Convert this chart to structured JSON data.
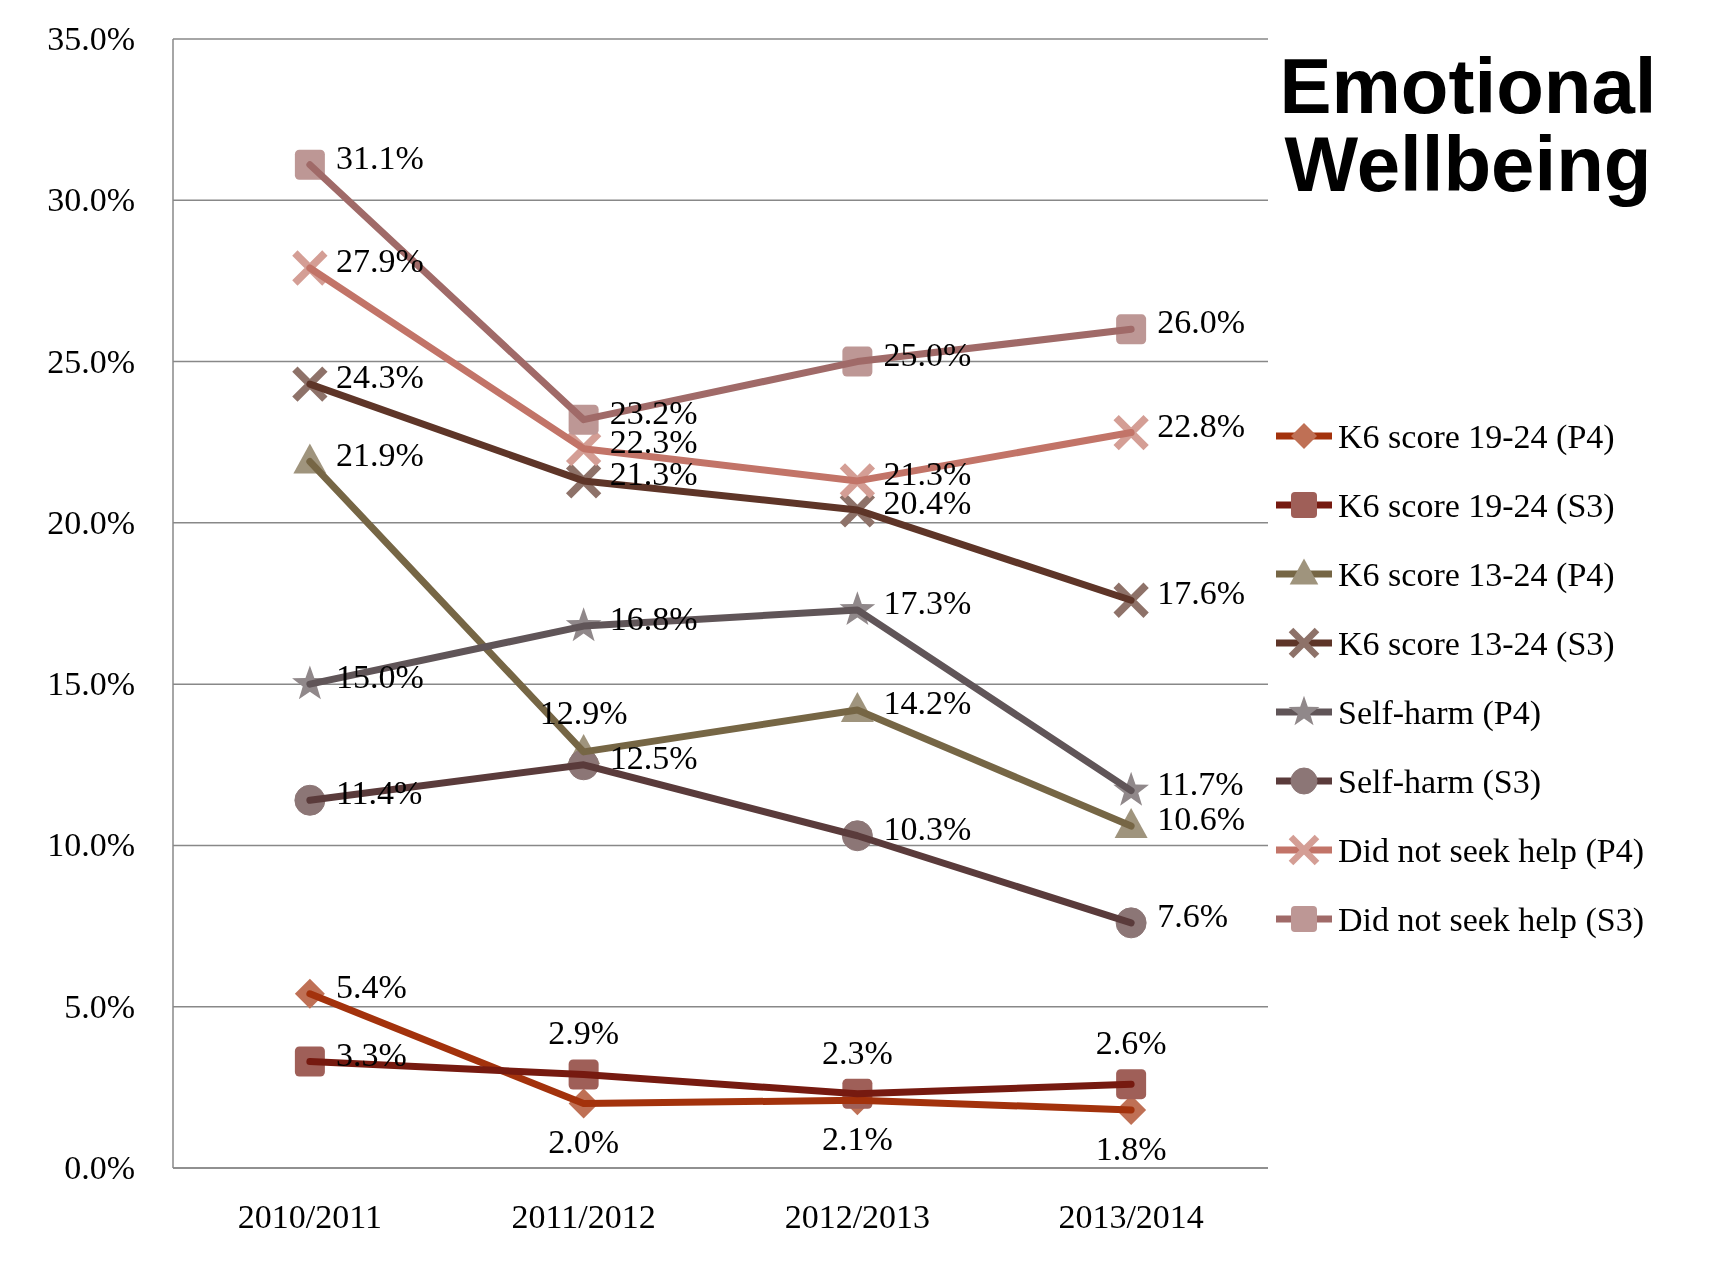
{
  "chart_data": {
    "type": "line",
    "title": "Emotional Wellbeing",
    "categories": [
      "2010/2011",
      "2011/2012",
      "2012/2013",
      "2013/2014"
    ],
    "ylim": [
      0,
      35
    ],
    "yticks": [
      {
        "value": 0,
        "label": "0.0%"
      },
      {
        "value": 5,
        "label": "5.0%"
      },
      {
        "value": 10,
        "label": "10.0%"
      },
      {
        "value": 15,
        "label": "15.0%"
      },
      {
        "value": 20,
        "label": "20.0%"
      },
      {
        "value": 25,
        "label": "25.0%"
      },
      {
        "value": 30,
        "label": "30.0%"
      },
      {
        "value": 35,
        "label": "35.0%"
      }
    ],
    "grid": "y",
    "legend": "right",
    "line_style": "solid",
    "series": [
      {
        "name": "K6 score 19-24 (P4)",
        "color": "#a3320c",
        "marker": "diamond",
        "values": [
          5.4,
          2.0,
          2.1,
          1.8
        ],
        "value_labels": [
          "5.4%",
          "2.0%",
          "2.1%",
          "1.8%"
        ]
      },
      {
        "name": "K6 score 19-24 (S3)",
        "color": "#761a10",
        "marker": "square",
        "values": [
          3.3,
          2.9,
          2.3,
          2.6
        ],
        "value_labels": [
          "3.3%",
          "2.9%",
          "2.3%",
          "2.6%"
        ]
      },
      {
        "name": "K6 score 13-24 (P4)",
        "color": "#766645",
        "marker": "triangle",
        "values": [
          21.9,
          12.9,
          14.2,
          10.6
        ],
        "value_labels": [
          "21.9%",
          "12.9%",
          "14.2%",
          "10.6%"
        ]
      },
      {
        "name": "K6 score 13-24 (S3)",
        "color": "#5e3528",
        "marker": "cross",
        "values": [
          24.3,
          21.3,
          20.4,
          17.6
        ],
        "value_labels": [
          "24.3%",
          "21.3%",
          "20.4%",
          "17.6%"
        ]
      },
      {
        "name": "Self-harm (P4)",
        "color": "#605558",
        "marker": "star",
        "values": [
          15.0,
          16.8,
          17.3,
          11.7
        ],
        "value_labels": [
          "15.0%",
          "16.8%",
          "17.3%",
          "11.7%"
        ]
      },
      {
        "name": "Self-harm (S3)",
        "color": "#5a3b3b",
        "marker": "circle",
        "values": [
          11.4,
          12.5,
          10.3,
          7.6
        ],
        "value_labels": [
          "11.4%",
          "12.5%",
          "10.3%",
          "7.6%"
        ]
      },
      {
        "name": "Did not seek help (P4)",
        "color": "#c27468",
        "marker": "cross",
        "values": [
          27.9,
          22.3,
          21.3,
          22.8
        ],
        "value_labels": [
          "27.9%",
          "22.3%",
          "21.3%",
          "22.8%"
        ]
      },
      {
        "name": "Did not seek help (S3)",
        "color": "#a06a68",
        "marker": "square",
        "values": [
          31.1,
          23.2,
          25.0,
          26.0
        ],
        "value_labels": [
          "31.1%",
          "23.2%",
          "25.0%",
          "26.0%"
        ]
      }
    ]
  }
}
